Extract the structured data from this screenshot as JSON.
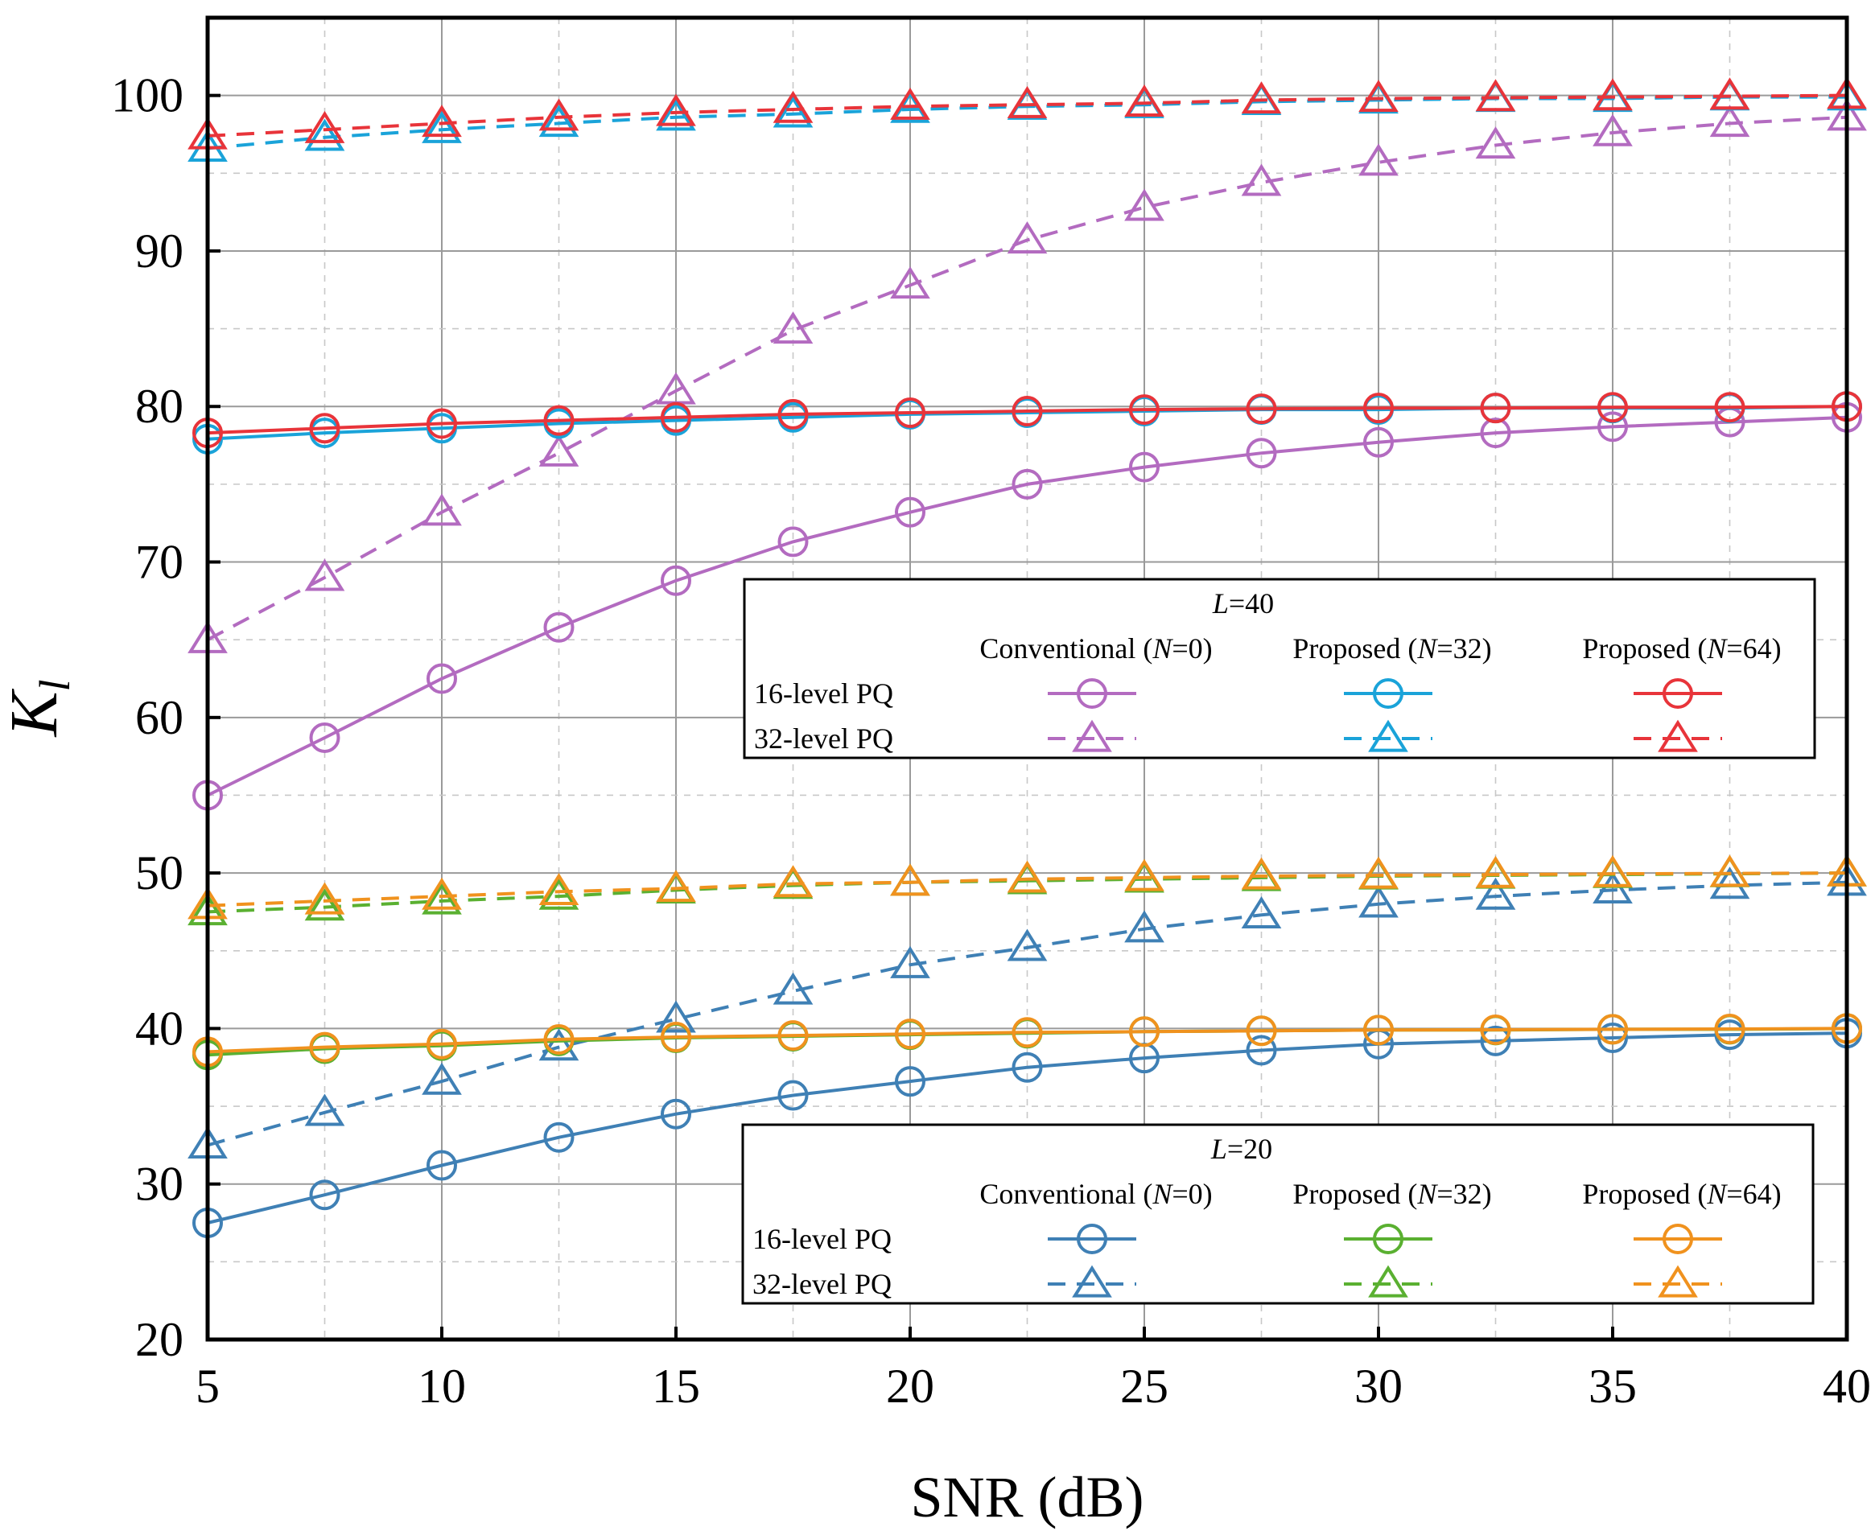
{
  "chart_data": {
    "type": "line",
    "xlabel": "SNR (dB)",
    "ylabel_main": "K",
    "ylabel_sub": "l",
    "xlim": [
      5,
      40
    ],
    "ylim": [
      20,
      105
    ],
    "xticks": [
      5,
      10,
      15,
      20,
      25,
      30,
      35,
      40
    ],
    "yticks": [
      20,
      30,
      40,
      50,
      60,
      70,
      80,
      90,
      100
    ],
    "grid": true,
    "x": [
      5,
      7.5,
      10,
      12.5,
      15,
      17.5,
      20,
      22.5,
      25,
      27.5,
      30,
      32.5,
      35,
      37.5,
      40
    ],
    "series": [
      {
        "id": "l40-conv-16",
        "group": "L40",
        "marker": "circle",
        "dash": false,
        "color": "#b36bc0",
        "values": [
          55,
          58.7,
          62.5,
          65.8,
          68.8,
          71.3,
          73.2,
          75.0,
          76.1,
          77.0,
          77.7,
          78.3,
          78.7,
          79.0,
          79.3
        ]
      },
      {
        "id": "l40-conv-32",
        "group": "L40",
        "marker": "triangle",
        "dash": true,
        "color": "#b36bc0",
        "values": [
          65,
          69,
          73.2,
          77,
          81,
          84.9,
          87.8,
          90.7,
          92.8,
          94.4,
          95.7,
          96.8,
          97.6,
          98.2,
          98.6
        ]
      },
      {
        "id": "l40-n32-16",
        "group": "L40",
        "marker": "circle",
        "dash": false,
        "color": "#1aa3d9",
        "values": [
          77.9,
          78.3,
          78.6,
          78.9,
          79.1,
          79.3,
          79.5,
          79.6,
          79.7,
          79.8,
          79.8,
          79.9,
          79.9,
          79.9,
          80.0
        ]
      },
      {
        "id": "l40-n32-32",
        "group": "L40",
        "marker": "triangle",
        "dash": true,
        "color": "#1aa3d9",
        "values": [
          96.6,
          97.3,
          97.8,
          98.2,
          98.6,
          98.8,
          99.1,
          99.3,
          99.4,
          99.6,
          99.7,
          99.8,
          99.8,
          99.9,
          99.9
        ]
      },
      {
        "id": "l40-n64-16",
        "group": "L40",
        "marker": "circle",
        "dash": false,
        "color": "#e8343a",
        "values": [
          78.3,
          78.6,
          78.9,
          79.1,
          79.3,
          79.5,
          79.6,
          79.7,
          79.8,
          79.85,
          79.9,
          79.9,
          79.95,
          79.95,
          80.0
        ]
      },
      {
        "id": "l40-n64-32",
        "group": "L40",
        "marker": "triangle",
        "dash": true,
        "color": "#e8343a",
        "values": [
          97.4,
          97.8,
          98.2,
          98.6,
          98.9,
          99.1,
          99.3,
          99.4,
          99.5,
          99.7,
          99.8,
          99.85,
          99.9,
          99.95,
          100.0
        ]
      },
      {
        "id": "l20-conv-16",
        "group": "L20",
        "marker": "circle",
        "dash": false,
        "color": "#3f80b5",
        "values": [
          27.5,
          29.3,
          31.2,
          33.0,
          34.5,
          35.7,
          36.6,
          37.5,
          38.1,
          38.6,
          39.0,
          39.2,
          39.4,
          39.6,
          39.7
        ]
      },
      {
        "id": "l20-conv-32",
        "group": "L20",
        "marker": "triangle",
        "dash": true,
        "color": "#3f80b5",
        "values": [
          32.5,
          34.6,
          36.6,
          38.8,
          40.6,
          42.4,
          44.1,
          45.2,
          46.4,
          47.3,
          48.0,
          48.5,
          48.9,
          49.2,
          49.4
        ]
      },
      {
        "id": "l20-n32-16",
        "group": "L20",
        "marker": "circle",
        "dash": false,
        "color": "#5ab031",
        "values": [
          38.3,
          38.7,
          38.9,
          39.2,
          39.4,
          39.5,
          39.6,
          39.7,
          39.8,
          39.85,
          39.9,
          39.9,
          39.95,
          39.95,
          40.0
        ]
      },
      {
        "id": "l20-n32-32",
        "group": "L20",
        "marker": "triangle",
        "dash": true,
        "color": "#5ab031",
        "values": [
          47.5,
          47.8,
          48.2,
          48.5,
          48.9,
          49.2,
          49.4,
          49.5,
          49.6,
          49.7,
          49.8,
          49.85,
          49.9,
          49.95,
          50.0
        ]
      },
      {
        "id": "l20-n64-16",
        "group": "L20",
        "marker": "circle",
        "dash": false,
        "color": "#f0921e",
        "values": [
          38.5,
          38.8,
          39.0,
          39.3,
          39.45,
          39.55,
          39.65,
          39.75,
          39.8,
          39.85,
          39.9,
          39.92,
          39.95,
          39.97,
          40.0
        ]
      },
      {
        "id": "l20-n64-32",
        "group": "L20",
        "marker": "triangle",
        "dash": true,
        "color": "#f0921e",
        "values": [
          47.9,
          48.2,
          48.5,
          48.8,
          49.0,
          49.3,
          49.4,
          49.6,
          49.7,
          49.8,
          49.85,
          49.9,
          49.95,
          49.97,
          50.0
        ]
      }
    ],
    "legends": [
      {
        "id": "L40",
        "header_italic": "L",
        "header_rest": "=40",
        "columns": [
          {
            "pre": "Conventional (",
            "italic": "N",
            "post": "=0)"
          },
          {
            "pre": "Proposed (",
            "italic": "N",
            "post": "=32)"
          },
          {
            "pre": "Proposed (",
            "italic": "N",
            "post": "=64)"
          }
        ],
        "rows": [
          "16-level PQ",
          "32-level PQ"
        ],
        "series_grid": [
          [
            "l40-conv-16",
            "l40-n32-16",
            "l40-n64-16"
          ],
          [
            "l40-conv-32",
            "l40-n32-32",
            "l40-n64-32"
          ]
        ]
      },
      {
        "id": "L20",
        "header_italic": "L",
        "header_rest": "=20",
        "columns": [
          {
            "pre": "Conventional (",
            "italic": "N",
            "post": "=0)"
          },
          {
            "pre": "Proposed (",
            "italic": "N",
            "post": "=32)"
          },
          {
            "pre": "Proposed (",
            "italic": "N",
            "post": "=64)"
          }
        ],
        "rows": [
          "16-level PQ",
          "32-level PQ"
        ],
        "series_grid": [
          [
            "l20-conv-16",
            "l20-n32-16",
            "l20-n64-16"
          ],
          [
            "l20-conv-32",
            "l20-n32-32",
            "l20-n64-32"
          ]
        ]
      }
    ]
  }
}
